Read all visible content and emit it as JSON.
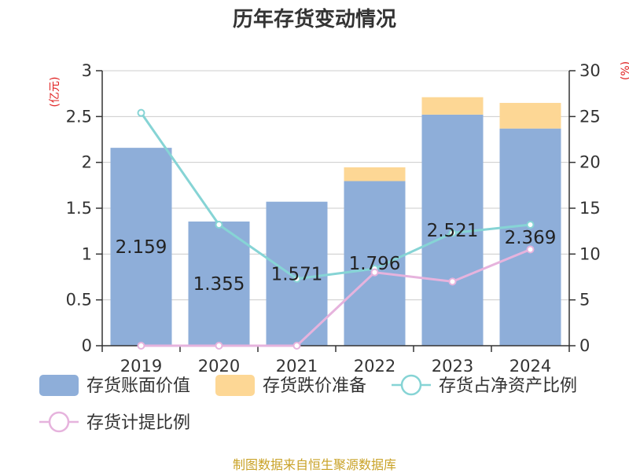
{
  "chart_data": {
    "type": "bar",
    "title": "历年存货变动情况",
    "ylabel_left": "(亿元)",
    "ylabel_right": "(%)",
    "categories": [
      "2019",
      "2020",
      "2021",
      "2022",
      "2023",
      "2024"
    ],
    "ylim_left": [
      0,
      3
    ],
    "ylim_right": [
      0,
      30
    ],
    "yticks_left": [
      "0",
      "0.5",
      "1",
      "1.5",
      "2",
      "2.5",
      "3"
    ],
    "yticks_right": [
      "0",
      "5",
      "10",
      "15",
      "20",
      "25",
      "30"
    ],
    "grid": true,
    "legend_position": "bottom",
    "series": [
      {
        "name": "存货账面价值",
        "type": "bar",
        "axis": "left",
        "stack": "inv",
        "color": "#8eaed9",
        "values": [
          2.159,
          1.355,
          1.571,
          1.796,
          2.521,
          2.369
        ],
        "labels": [
          "2.159",
          "1.355",
          "1.571",
          "1.796",
          "2.521",
          "2.369"
        ]
      },
      {
        "name": "存货跌价准备",
        "type": "bar",
        "axis": "left",
        "stack": "inv",
        "color": "#fdd795",
        "values": [
          0,
          0,
          0,
          0.15,
          0.19,
          0.28
        ]
      },
      {
        "name": "存货占净资产比例",
        "type": "line",
        "axis": "right",
        "color": "#86d4d5",
        "values": [
          25.4,
          13.2,
          7.3,
          8.4,
          12.3,
          13.2
        ]
      },
      {
        "name": "存货计提比例",
        "type": "line",
        "axis": "right",
        "color": "#e6b3dd",
        "values": [
          0,
          0,
          0,
          8.0,
          7.0,
          10.5
        ]
      }
    ]
  },
  "source_note": "制图数据来自恒生聚源数据库"
}
